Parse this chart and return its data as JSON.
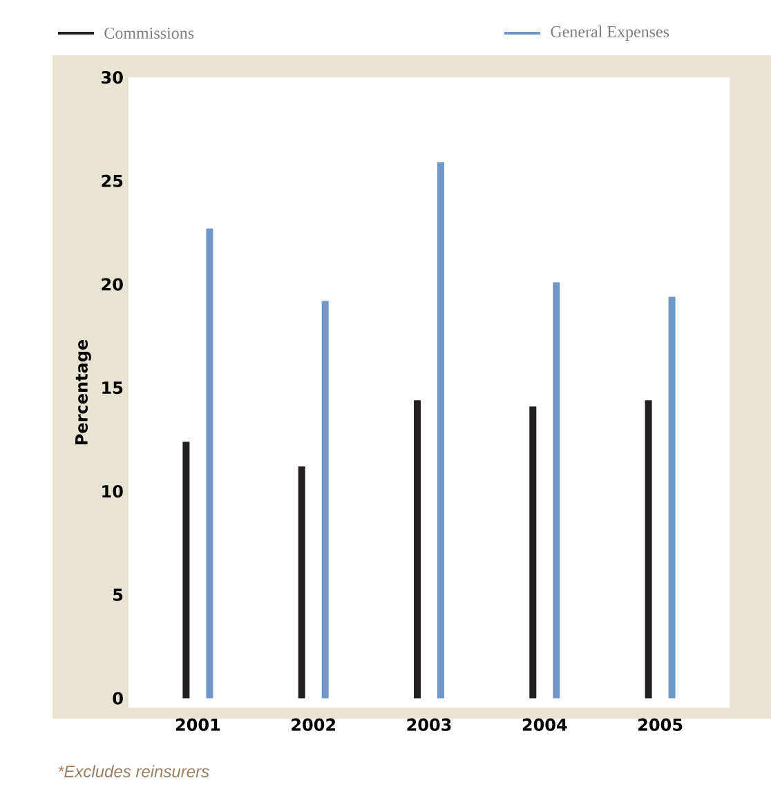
{
  "chart_data": {
    "type": "bar",
    "ylabel": "Percentage",
    "categories": [
      "2001",
      "2002",
      "2003",
      "2004",
      "2005"
    ],
    "series": [
      {
        "name": "Commissions",
        "color": "#231f20",
        "values": [
          12.4,
          11.2,
          14.4,
          14.1,
          14.4
        ]
      },
      {
        "name": "General Expenses",
        "color": "#6f98c8",
        "values": [
          22.7,
          19.2,
          25.9,
          20.1,
          19.4
        ]
      }
    ],
    "ylim": [
      0,
      30
    ],
    "yticks": [
      0,
      5,
      10,
      15,
      20,
      25,
      30
    ],
    "grid": false,
    "legend": "top",
    "annotations": [
      "*Excludes reinsurers"
    ]
  }
}
